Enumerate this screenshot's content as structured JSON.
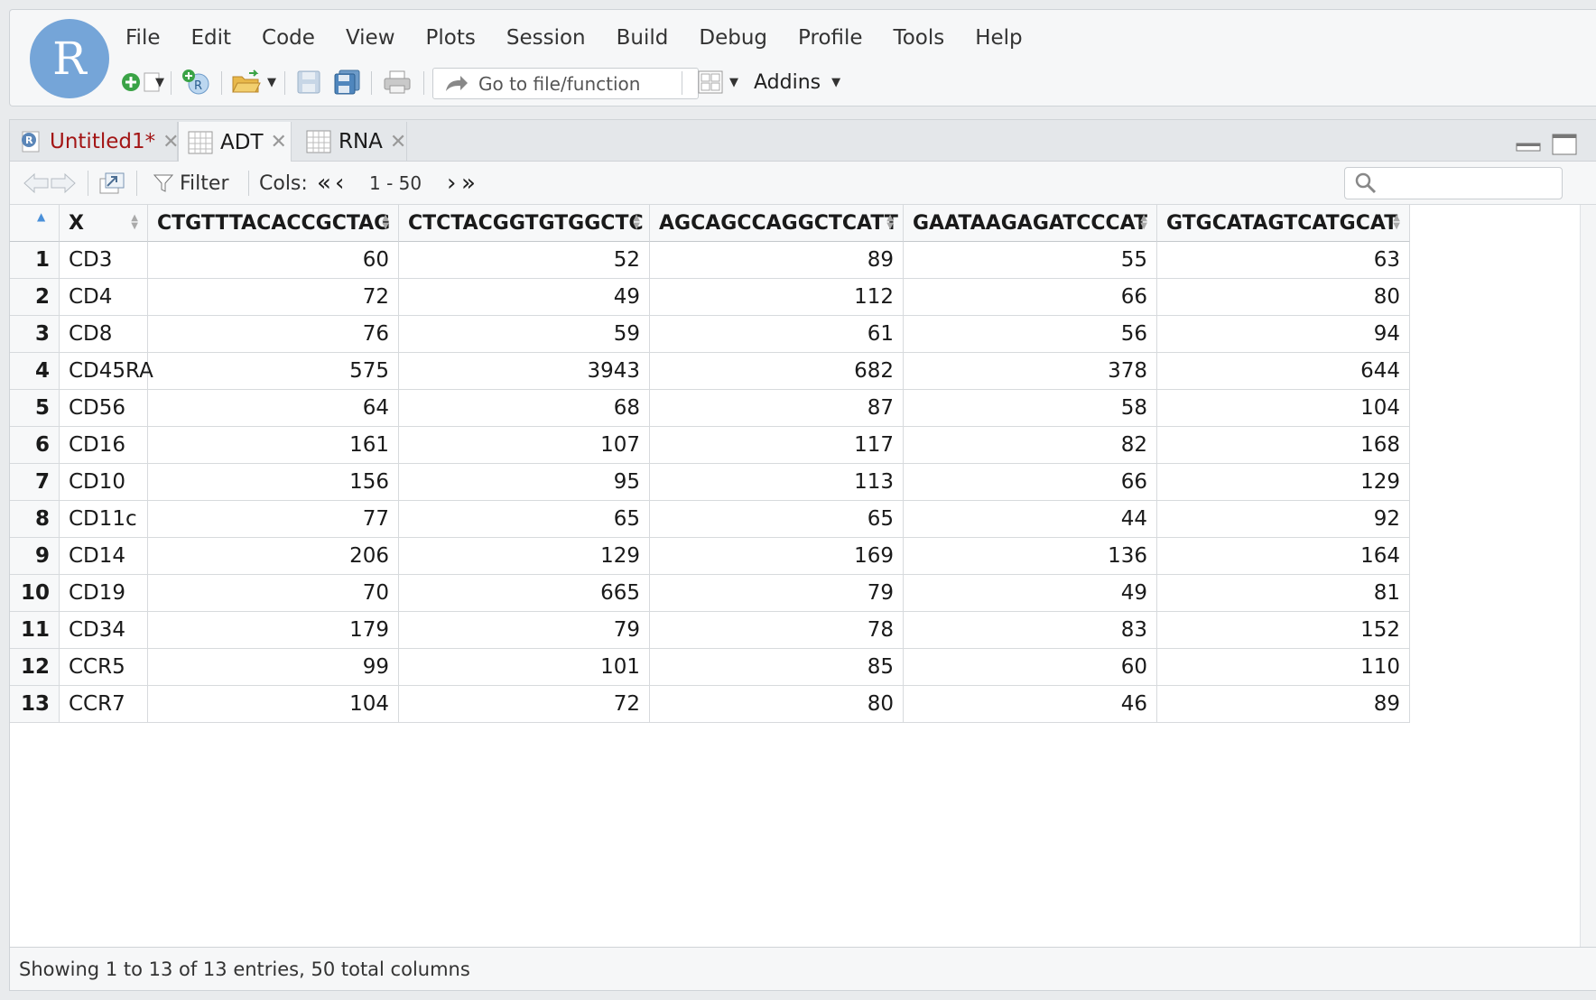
{
  "app": {
    "logo_letter": "R"
  },
  "menu": [
    "File",
    "Edit",
    "Code",
    "View",
    "Plots",
    "Session",
    "Build",
    "Debug",
    "Profile",
    "Tools",
    "Help"
  ],
  "toolbar": {
    "goto_placeholder": "Go to file/function",
    "addins_label": "Addins"
  },
  "tabs": [
    {
      "label": "Untitled1*",
      "icon": "r-script-icon",
      "color": "#a31515"
    },
    {
      "label": "ADT",
      "icon": "table-icon",
      "color": "#1a1a1a"
    },
    {
      "label": "RNA",
      "icon": "table-icon",
      "color": "#1a1a1a"
    }
  ],
  "databar": {
    "filter_label": "Filter",
    "cols_label": "Cols:",
    "cols_range": "1 - 50",
    "search_value": ""
  },
  "table": {
    "columns": [
      "X",
      "CTGTTTACACCGCTAG",
      "CTCTACGGTGTGGCTC",
      "AGCAGCCAGGCTCATT",
      "GAATAAGAGATCCCAT",
      "GTGCATAGTCATGCAT"
    ],
    "rows": [
      {
        "n": "1",
        "cells": [
          "CD3",
          "60",
          "52",
          "89",
          "55",
          "63"
        ]
      },
      {
        "n": "2",
        "cells": [
          "CD4",
          "72",
          "49",
          "112",
          "66",
          "80"
        ]
      },
      {
        "n": "3",
        "cells": [
          "CD8",
          "76",
          "59",
          "61",
          "56",
          "94"
        ]
      },
      {
        "n": "4",
        "cells": [
          "CD45RA",
          "575",
          "3943",
          "682",
          "378",
          "644"
        ]
      },
      {
        "n": "5",
        "cells": [
          "CD56",
          "64",
          "68",
          "87",
          "58",
          "104"
        ]
      },
      {
        "n": "6",
        "cells": [
          "CD16",
          "161",
          "107",
          "117",
          "82",
          "168"
        ]
      },
      {
        "n": "7",
        "cells": [
          "CD10",
          "156",
          "95",
          "113",
          "66",
          "129"
        ]
      },
      {
        "n": "8",
        "cells": [
          "CD11c",
          "77",
          "65",
          "65",
          "44",
          "92"
        ]
      },
      {
        "n": "9",
        "cells": [
          "CD14",
          "206",
          "129",
          "169",
          "136",
          "164"
        ]
      },
      {
        "n": "10",
        "cells": [
          "CD19",
          "70",
          "665",
          "79",
          "49",
          "81"
        ]
      },
      {
        "n": "11",
        "cells": [
          "CD34",
          "179",
          "79",
          "78",
          "83",
          "152"
        ]
      },
      {
        "n": "12",
        "cells": [
          "CCR5",
          "99",
          "101",
          "85",
          "60",
          "110"
        ]
      },
      {
        "n": "13",
        "cells": [
          "CCR7",
          "104",
          "72",
          "80",
          "46",
          "89"
        ]
      }
    ]
  },
  "status": {
    "text": "Showing 1 to 13 of 13 entries, 50 total columns"
  },
  "colors": {
    "logo": "#75a5d8",
    "modified_tab": "#a31515",
    "accent": "#4a90d9"
  }
}
